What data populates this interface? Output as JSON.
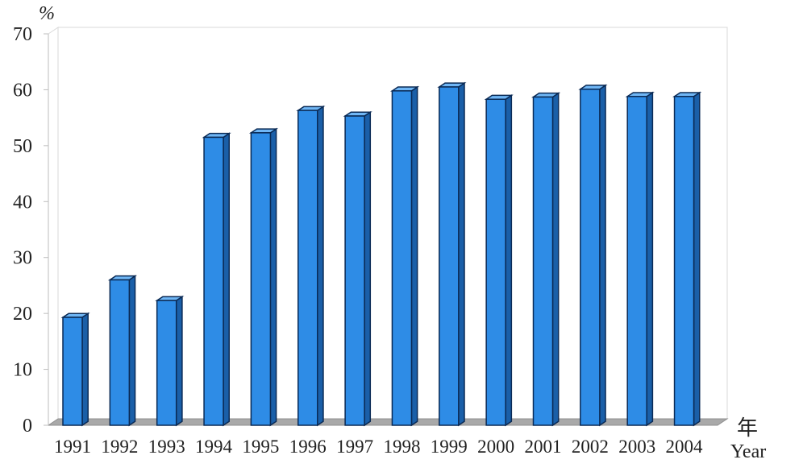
{
  "chart_data": {
    "type": "bar",
    "title": "",
    "xlabel": "年 Year",
    "xlabel_cn": "年",
    "xlabel_en": "Year",
    "ylabel": "%",
    "ylim": [
      0,
      70
    ],
    "yticks": [
      0,
      10,
      20,
      30,
      40,
      50,
      60,
      70
    ],
    "categories": [
      "1991",
      "1992",
      "1993",
      "1994",
      "1995",
      "1996",
      "1997",
      "1998",
      "1999",
      "2000",
      "2001",
      "2002",
      "2003",
      "2004"
    ],
    "values": [
      19.3,
      26.0,
      22.3,
      51.5,
      52.3,
      56.3,
      55.3,
      59.8,
      60.5,
      58.3,
      58.7,
      60.1,
      58.8,
      58.8
    ],
    "grid": false,
    "style": "3d",
    "bar_color": "#2E8CE6",
    "bar_side_color": "#1A5FA8",
    "bar_top_color": "#6FB6F5",
    "floor_color": "#A9A9A9"
  }
}
